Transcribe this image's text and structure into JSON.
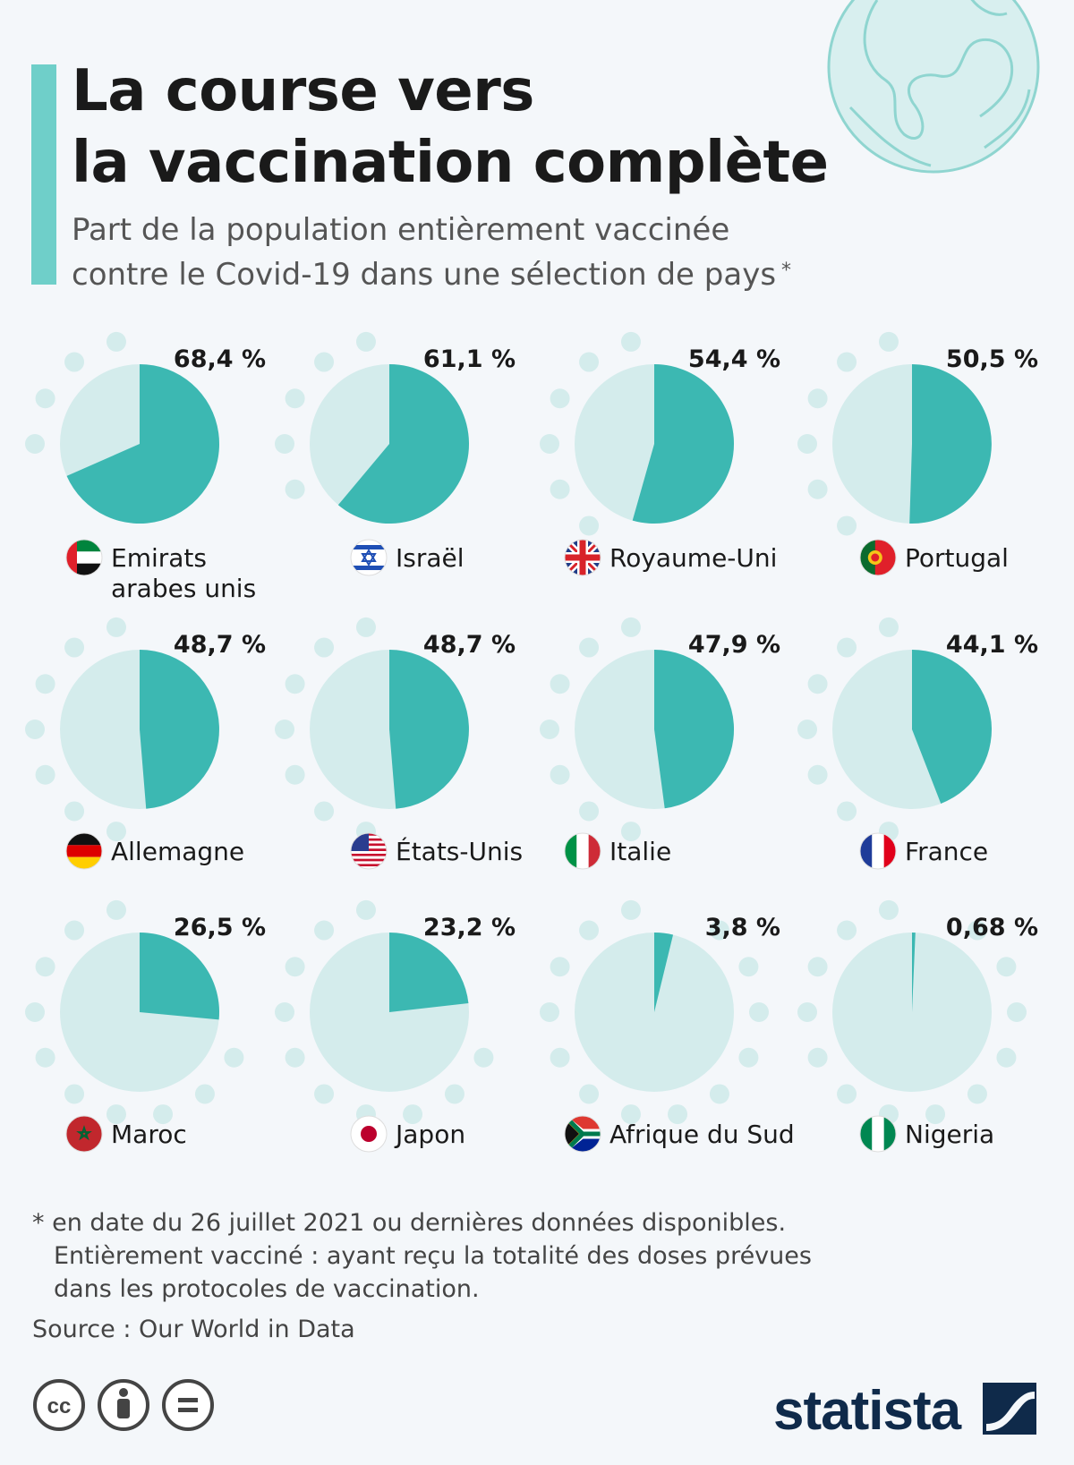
{
  "header": {
    "title_lines": [
      "La course vers",
      "la vaccination complète"
    ],
    "subtitle_lines": [
      "Part de la population entièrement vaccinée",
      "contre le Covid-19 dans une sélection de pays"
    ],
    "subtitle_marker": "*"
  },
  "chart_data": {
    "type": "pie",
    "series_unit": "%",
    "items": [
      {
        "country": [
          "Emirats",
          "arabes unis"
        ],
        "value": 68.4,
        "label": "68,4 %",
        "flag": "uae-flag"
      },
      {
        "country": [
          "Israël"
        ],
        "value": 61.1,
        "label": "61,1 %",
        "flag": "israel-flag"
      },
      {
        "country": [
          "Royaume-Uni"
        ],
        "value": 54.4,
        "label": "54,4 %",
        "flag": "uk-flag"
      },
      {
        "country": [
          "Portugal"
        ],
        "value": 50.5,
        "label": "50,5 %",
        "flag": "portugal-flag"
      },
      {
        "country": [
          "Allemagne"
        ],
        "value": 48.7,
        "label": "48,7 %",
        "flag": "germany-flag"
      },
      {
        "country": [
          "États-Unis"
        ],
        "value": 48.7,
        "label": "48,7 %",
        "flag": "usa-flag"
      },
      {
        "country": [
          "Italie"
        ],
        "value": 47.9,
        "label": "47,9 %",
        "flag": "italy-flag"
      },
      {
        "country": [
          "France"
        ],
        "value": 44.1,
        "label": "44,1 %",
        "flag": "france-flag"
      },
      {
        "country": [
          "Maroc"
        ],
        "value": 26.5,
        "label": "26,5 %",
        "flag": "morocco-flag"
      },
      {
        "country": [
          "Japon"
        ],
        "value": 23.2,
        "label": "23,2 %",
        "flag": "japan-flag"
      },
      {
        "country": [
          "Afrique du Sud"
        ],
        "value": 3.8,
        "label": "3,8 %",
        "flag": "south-africa-flag"
      },
      {
        "country": [
          "Nigeria"
        ],
        "value": 0.68,
        "label": "0,68 %",
        "flag": "nigeria-flag"
      }
    ]
  },
  "colors": {
    "filled": "#3cb8b2",
    "remaining": "#d4ecec",
    "accent": "#6fcfc9"
  },
  "footnote": {
    "lines": [
      "* en date du 26 juillet 2021 ou dernières données disponibles.",
      "Entièrement vacciné : ayant reçu la totalité des doses prévues",
      "dans les protocoles de vaccination."
    ],
    "source": "Source : Our World in Data"
  },
  "footer": {
    "brand": "statista",
    "license_icons": [
      "cc-icon",
      "attribution-icon",
      "no-derivatives-icon"
    ]
  }
}
